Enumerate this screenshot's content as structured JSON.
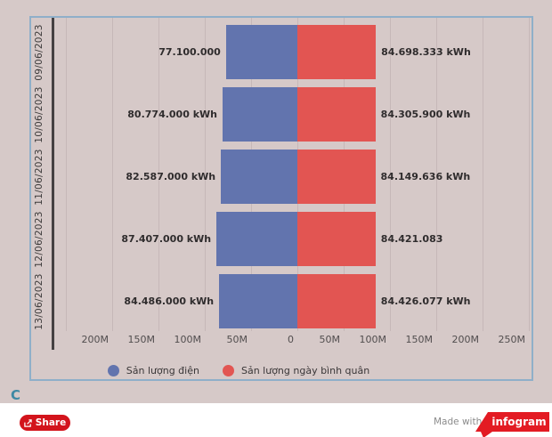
{
  "chart_data": {
    "type": "bar",
    "orientation": "horizontal-diverging",
    "title": "",
    "categories": [
      "09/06/2023",
      "10/06/2023",
      "11/06/2023",
      "12/06/2023",
      "13/06/2023"
    ],
    "series": [
      {
        "name": "Sản lượng điện",
        "color": "#6274ae",
        "direction": "left",
        "values": [
          77100000,
          80774000,
          82587000,
          87407000,
          84486000
        ],
        "labels": [
          "77.100.000",
          "80.774.000 kWh",
          "82.587.000 kWh",
          "87.407.000 kWh",
          "84.486.000 kWh"
        ]
      },
      {
        "name": "Sản lượng ngày bình quân",
        "color": "#e25552",
        "direction": "right",
        "values": [
          84698333,
          84305900,
          84149636,
          84421083,
          84426077
        ],
        "labels": [
          "84.698.333 kWh",
          "84.305.900 kWh",
          "84.149.636 kWh",
          "84.421.083",
          "84.426.077 kWh"
        ]
      }
    ],
    "x_axis": {
      "unit": "kWh",
      "tick_labels": [
        "200M",
        "150M",
        "100M",
        "50M",
        "0",
        "50M",
        "100M",
        "150M",
        "200M",
        "250M"
      ],
      "tick_values_millions": [
        -200,
        -150,
        -100,
        -50,
        0,
        50,
        100,
        150,
        200,
        250
      ],
      "gridline_values_millions": [
        -250,
        -200,
        -150,
        -100,
        -50,
        0,
        50,
        100,
        150,
        200,
        250
      ]
    },
    "grid": true,
    "legend_position": "bottom",
    "legend": [
      {
        "label": "Sản lượng điện",
        "color": "#6274ae"
      },
      {
        "label": "Sản lượng ngày bình quân",
        "color": "#e25552"
      }
    ]
  },
  "footer": {
    "refresh_glyph": "C",
    "share_label": "Share",
    "made_with": "Made with",
    "brand": "infogram"
  },
  "colors": {
    "page_background": "#d6c9c8",
    "widget_border": "#8fafc9",
    "gridline": "#c6b8b8",
    "axis_line": "#454142",
    "bar_blue": "#6274ae",
    "bar_red": "#e25552",
    "share_button": "#d3141c",
    "brand_red": "#e31b23",
    "refresh_icon": "#3e89a4"
  }
}
